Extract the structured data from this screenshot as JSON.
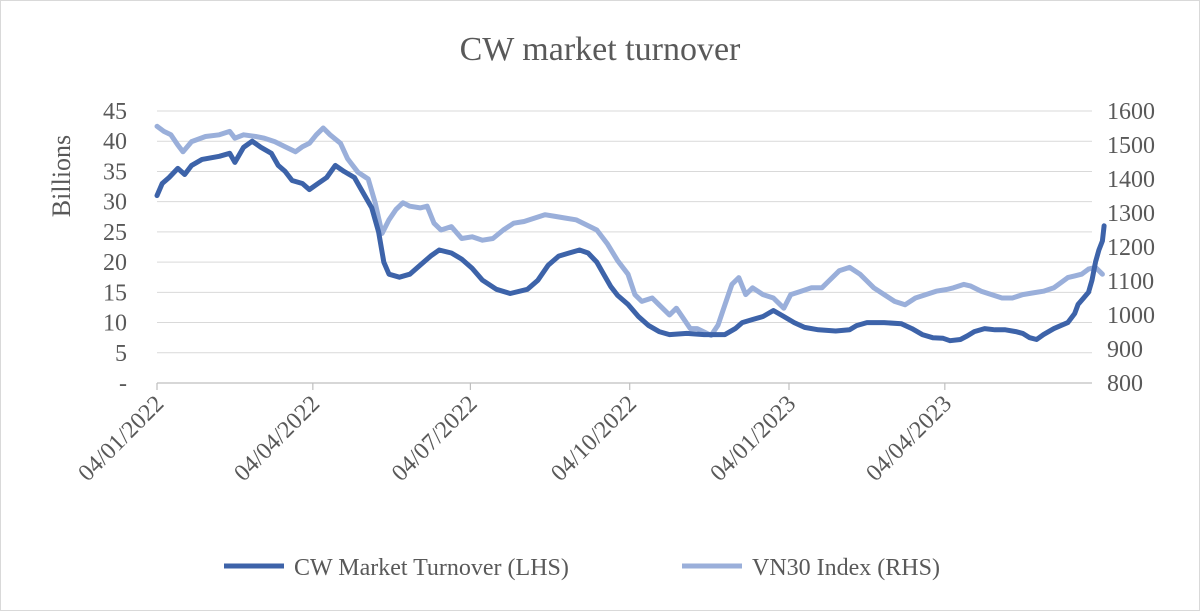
{
  "chart_data": {
    "type": "line",
    "title": "CW market turnover",
    "ylabel": "Billions",
    "y_left_ticks": [
      "-",
      "5",
      "10",
      "15",
      "20",
      "25",
      "30",
      "35",
      "40",
      "45"
    ],
    "y_right_ticks": [
      "800",
      "900",
      "1000",
      "1100",
      "1200",
      "1300",
      "1400",
      "1500",
      "1600"
    ],
    "ylim_left": [
      0,
      45
    ],
    "ylim_right": [
      800,
      1600
    ],
    "x_ticks": [
      "04/01/2022",
      "04/04/2022",
      "04/07/2022",
      "04/10/2022",
      "04/01/2023",
      "04/04/2023"
    ],
    "x_tick_days": [
      0,
      90,
      181,
      273,
      365,
      455
    ],
    "x_end_day": 540,
    "grid": true,
    "legend_position": "bottom",
    "colors": {
      "turnover": "#3d63a9",
      "vn30": "#9aafda",
      "grid": "#d9d9d9",
      "text": "#595959"
    },
    "series": [
      {
        "name": "CW Market Turnover (LHS)",
        "axis": "left",
        "points": [
          [
            0,
            31
          ],
          [
            3,
            33
          ],
          [
            7,
            34
          ],
          [
            12,
            35.5
          ],
          [
            16,
            34.5
          ],
          [
            20,
            36
          ],
          [
            26,
            37
          ],
          [
            36,
            37.5
          ],
          [
            42,
            38
          ],
          [
            45,
            36.5
          ],
          [
            50,
            39
          ],
          [
            55,
            40
          ],
          [
            60,
            39
          ],
          [
            66,
            38
          ],
          [
            70,
            36
          ],
          [
            74,
            35
          ],
          [
            78,
            33.5
          ],
          [
            84,
            33
          ],
          [
            88,
            32
          ],
          [
            93,
            33
          ],
          [
            98,
            34
          ],
          [
            103,
            36
          ],
          [
            108,
            35
          ],
          [
            114,
            34
          ],
          [
            118,
            32
          ],
          [
            124,
            29
          ],
          [
            128,
            25
          ],
          [
            131,
            20
          ],
          [
            134,
            18
          ],
          [
            140,
            17.5
          ],
          [
            146,
            18
          ],
          [
            152,
            19.5
          ],
          [
            158,
            21
          ],
          [
            163,
            22
          ],
          [
            170,
            21.5
          ],
          [
            176,
            20.5
          ],
          [
            182,
            19
          ],
          [
            188,
            17
          ],
          [
            196,
            15.5
          ],
          [
            204,
            14.8
          ],
          [
            214,
            15.5
          ],
          [
            220,
            17
          ],
          [
            226,
            19.5
          ],
          [
            232,
            21
          ],
          [
            238,
            21.5
          ],
          [
            244,
            22
          ],
          [
            249,
            21.5
          ],
          [
            254,
            20
          ],
          [
            258,
            18
          ],
          [
            262,
            16
          ],
          [
            266,
            14.5
          ],
          [
            272,
            13
          ],
          [
            278,
            11
          ],
          [
            284,
            9.5
          ],
          [
            290,
            8.5
          ],
          [
            296,
            8
          ],
          [
            306,
            8.2
          ],
          [
            316,
            8
          ],
          [
            328,
            8
          ],
          [
            334,
            9
          ],
          [
            338,
            10
          ],
          [
            344,
            10.5
          ],
          [
            350,
            11
          ],
          [
            356,
            12
          ],
          [
            362,
            11
          ],
          [
            368,
            10
          ],
          [
            374,
            9.2
          ],
          [
            382,
            8.8
          ],
          [
            392,
            8.6
          ],
          [
            400,
            8.8
          ],
          [
            404,
            9.5
          ],
          [
            410,
            10
          ],
          [
            420,
            10
          ],
          [
            430,
            9.8
          ],
          [
            436,
            9
          ],
          [
            442,
            8
          ],
          [
            448,
            7.5
          ],
          [
            454,
            7.4
          ],
          [
            458,
            7
          ],
          [
            464,
            7.2
          ],
          [
            468,
            7.8
          ],
          [
            472,
            8.5
          ],
          [
            478,
            9
          ],
          [
            484,
            8.8
          ],
          [
            490,
            8.8
          ],
          [
            496,
            8.5
          ],
          [
            500,
            8.2
          ],
          [
            504,
            7.5
          ],
          [
            508,
            7.2
          ],
          [
            512,
            8
          ],
          [
            518,
            9
          ],
          [
            522,
            9.5
          ],
          [
            526,
            10
          ],
          [
            530,
            11.5
          ],
          [
            532,
            13
          ],
          [
            535,
            14
          ],
          [
            538,
            15
          ],
          [
            540,
            17
          ],
          [
            542,
            20
          ],
          [
            544,
            22
          ],
          [
            546,
            23.5
          ],
          [
            547,
            26
          ]
        ]
      },
      {
        "name": "VN30 Index (RHS)",
        "axis": "right",
        "points": [
          [
            0,
            1555
          ],
          [
            4,
            1540
          ],
          [
            8,
            1530
          ],
          [
            12,
            1500
          ],
          [
            15,
            1480
          ],
          [
            20,
            1510
          ],
          [
            28,
            1525
          ],
          [
            36,
            1530
          ],
          [
            42,
            1540
          ],
          [
            45,
            1520
          ],
          [
            50,
            1530
          ],
          [
            57,
            1525
          ],
          [
            62,
            1520
          ],
          [
            68,
            1510
          ],
          [
            74,
            1495
          ],
          [
            80,
            1480
          ],
          [
            84,
            1495
          ],
          [
            88,
            1505
          ],
          [
            92,
            1530
          ],
          [
            96,
            1550
          ],
          [
            100,
            1530
          ],
          [
            106,
            1505
          ],
          [
            110,
            1460
          ],
          [
            116,
            1420
          ],
          [
            122,
            1400
          ],
          [
            126,
            1330
          ],
          [
            130,
            1240
          ],
          [
            134,
            1280
          ],
          [
            138,
            1310
          ],
          [
            142,
            1330
          ],
          [
            146,
            1320
          ],
          [
            152,
            1315
          ],
          [
            156,
            1320
          ],
          [
            160,
            1270
          ],
          [
            164,
            1250
          ],
          [
            170,
            1260
          ],
          [
            176,
            1225
          ],
          [
            182,
            1230
          ],
          [
            188,
            1220
          ],
          [
            194,
            1225
          ],
          [
            200,
            1250
          ],
          [
            206,
            1270
          ],
          [
            212,
            1275
          ],
          [
            218,
            1285
          ],
          [
            224,
            1295
          ],
          [
            230,
            1290
          ],
          [
            236,
            1285
          ],
          [
            242,
            1280
          ],
          [
            248,
            1265
          ],
          [
            254,
            1250
          ],
          [
            260,
            1210
          ],
          [
            266,
            1160
          ],
          [
            272,
            1120
          ],
          [
            276,
            1060
          ],
          [
            280,
            1040
          ],
          [
            286,
            1050
          ],
          [
            290,
            1030
          ],
          [
            296,
            1000
          ],
          [
            300,
            1020
          ],
          [
            304,
            990
          ],
          [
            308,
            960
          ],
          [
            312,
            960
          ],
          [
            316,
            950
          ],
          [
            320,
            940
          ],
          [
            324,
            970
          ],
          [
            328,
            1030
          ],
          [
            332,
            1090
          ],
          [
            336,
            1110
          ],
          [
            340,
            1060
          ],
          [
            344,
            1080
          ],
          [
            350,
            1060
          ],
          [
            356,
            1050
          ],
          [
            362,
            1020
          ],
          [
            366,
            1060
          ],
          [
            372,
            1070
          ],
          [
            378,
            1080
          ],
          [
            384,
            1080
          ],
          [
            388,
            1100
          ],
          [
            394,
            1130
          ],
          [
            400,
            1140
          ],
          [
            406,
            1120
          ],
          [
            410,
            1100
          ],
          [
            414,
            1080
          ],
          [
            420,
            1060
          ],
          [
            426,
            1040
          ],
          [
            432,
            1030
          ],
          [
            438,
            1050
          ],
          [
            444,
            1060
          ],
          [
            450,
            1070
          ],
          [
            456,
            1075
          ],
          [
            460,
            1080
          ],
          [
            466,
            1090
          ],
          [
            470,
            1085
          ],
          [
            476,
            1070
          ],
          [
            482,
            1060
          ],
          [
            488,
            1050
          ],
          [
            494,
            1050
          ],
          [
            500,
            1060
          ],
          [
            506,
            1065
          ],
          [
            512,
            1070
          ],
          [
            518,
            1080
          ],
          [
            522,
            1095
          ],
          [
            526,
            1110
          ],
          [
            530,
            1115
          ],
          [
            534,
            1120
          ],
          [
            538,
            1135
          ],
          [
            542,
            1140
          ],
          [
            546,
            1120
          ]
        ]
      }
    ]
  }
}
